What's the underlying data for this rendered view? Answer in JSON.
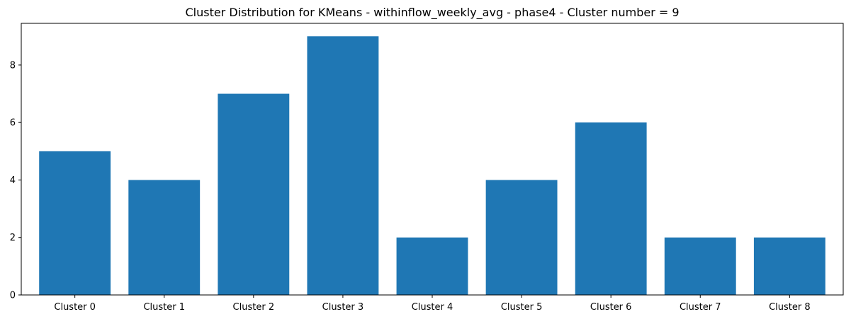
{
  "chart_data": {
    "type": "bar",
    "title": "Cluster Distribution for KMeans - withinflow_weekly_avg - phase4 - Cluster number = 9",
    "xlabel": "",
    "ylabel": "",
    "categories": [
      "Cluster 0",
      "Cluster 1",
      "Cluster 2",
      "Cluster 3",
      "Cluster 4",
      "Cluster 5",
      "Cluster 6",
      "Cluster 7",
      "Cluster 8"
    ],
    "values": [
      5,
      4,
      7,
      9,
      2,
      4,
      6,
      2,
      2
    ],
    "ylim": [
      0,
      9.45
    ],
    "yticks": [
      0,
      2,
      4,
      6,
      8
    ],
    "bar_color": "#1f77b4",
    "grid": false,
    "legend": false
  }
}
